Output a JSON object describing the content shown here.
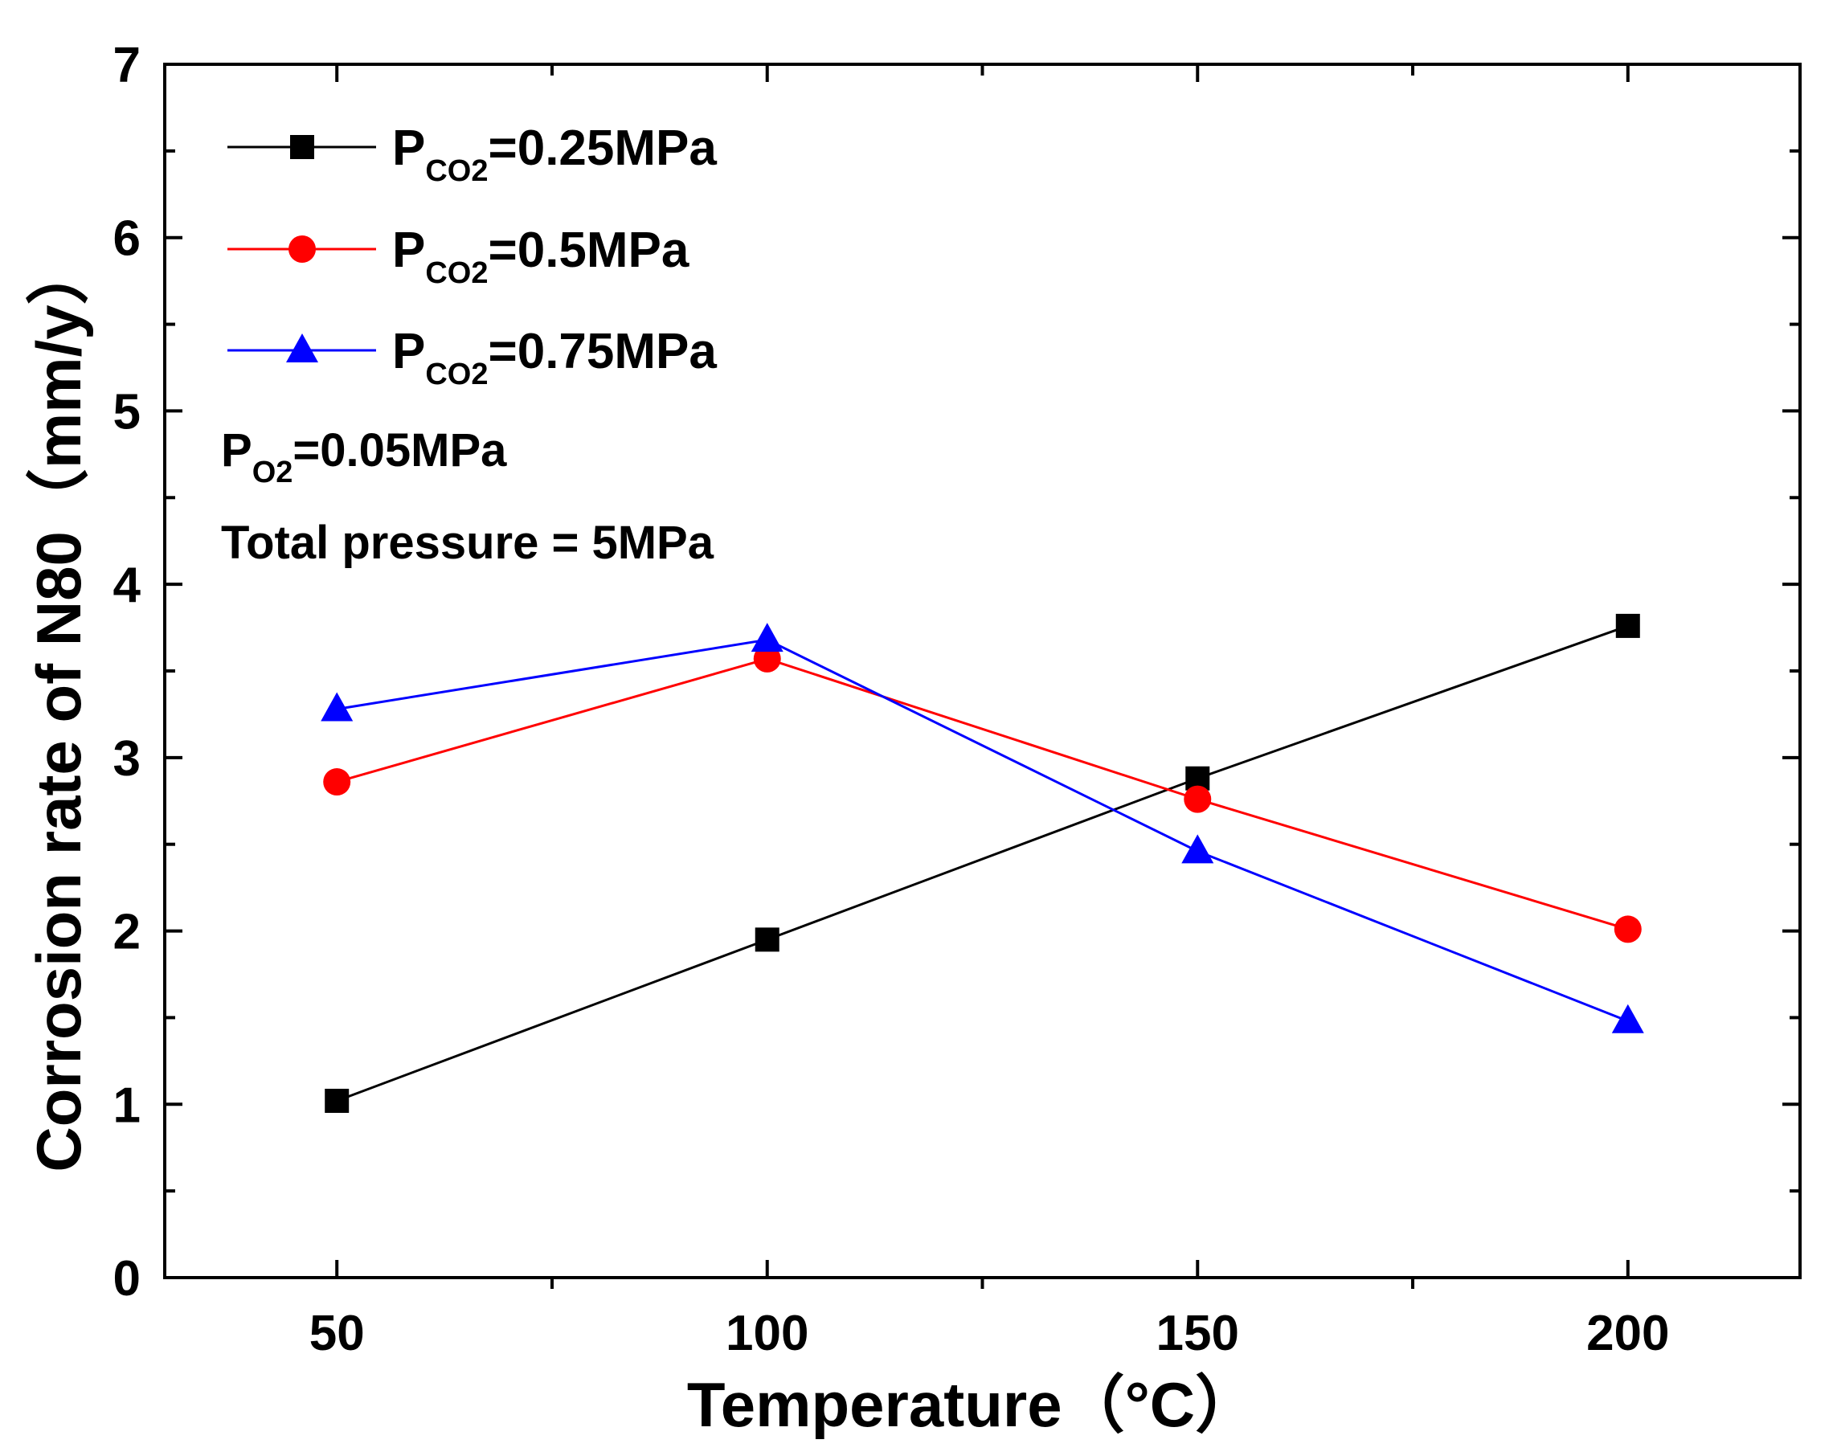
{
  "chart_data": {
    "type": "line",
    "title": "",
    "xlabel": "Temperature",
    "xlabel_unit": "（°C）",
    "ylabel": "Corrosion rate of N80",
    "ylabel_unit": "（mm/y）",
    "xlim": [
      30,
      220
    ],
    "ylim": [
      0,
      7
    ],
    "x_ticks": [
      50,
      100,
      150,
      200
    ],
    "x_minor_ticks": [
      75,
      125,
      175
    ],
    "y_ticks": [
      0,
      1,
      2,
      3,
      4,
      5,
      6,
      7
    ],
    "x": [
      50,
      100,
      150,
      200
    ],
    "legend_position": "top-left",
    "grid": false,
    "series": [
      {
        "name": "P_CO2=0.25MPa",
        "label_main": "P",
        "label_sub": "CO2",
        "label_rest": "=0.25MPa",
        "color": "#000000",
        "marker": "square",
        "values": [
          1.02,
          1.95,
          2.88,
          3.76
        ]
      },
      {
        "name": "P_CO2=0.5MPa",
        "label_main": "P",
        "label_sub": "CO2",
        "label_rest": "=0.5MPa",
        "color": "#ff0000",
        "marker": "circle",
        "values": [
          2.86,
          3.57,
          2.76,
          2.01
        ]
      },
      {
        "name": "P_CO2=0.75MPa",
        "label_main": "P",
        "label_sub": "CO2",
        "label_rest": "=0.75MPa",
        "color": "#0000ff",
        "marker": "triangle",
        "values": [
          3.28,
          3.68,
          2.46,
          1.48
        ]
      }
    ],
    "annotations": [
      {
        "main": "P",
        "sub": "O2",
        "rest": "=0.05MPa"
      },
      {
        "main": "Total pressure = 5MPa",
        "sub": "",
        "rest": ""
      }
    ]
  }
}
